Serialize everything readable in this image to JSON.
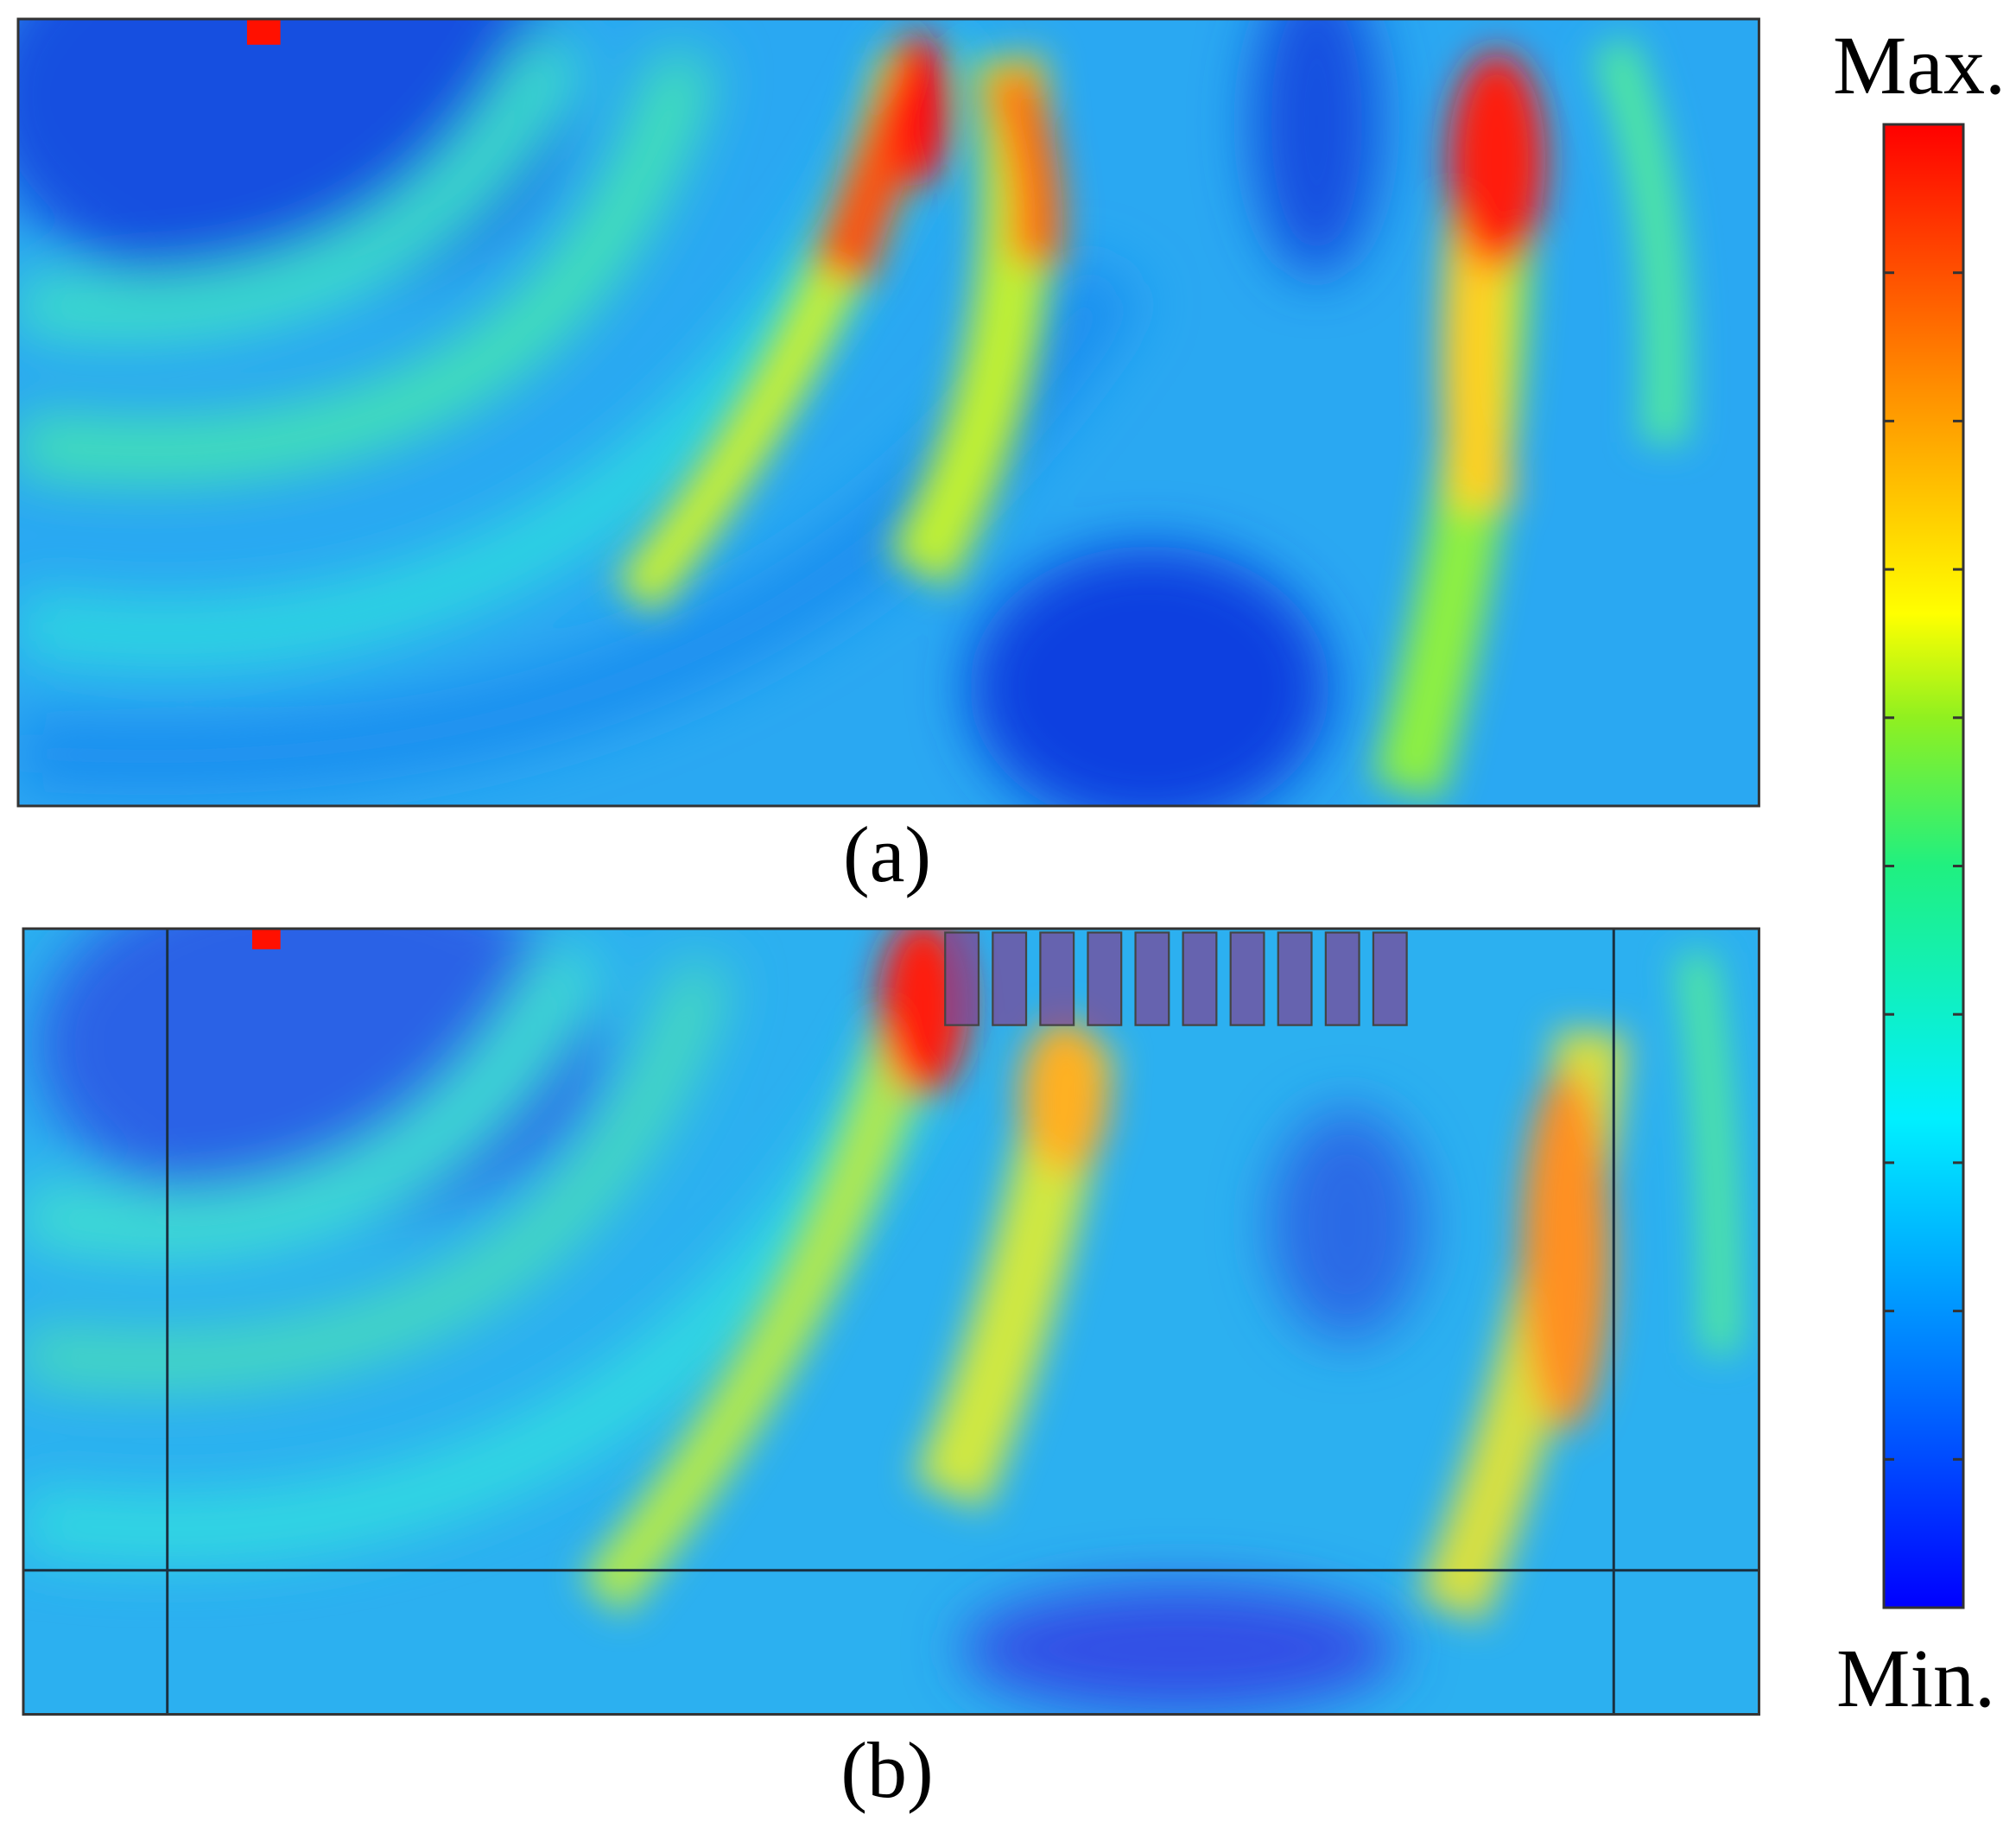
{
  "panels": [
    {
      "label": "(a)"
    },
    {
      "label": "(b)"
    }
  ],
  "colorbar": {
    "max_label": "Max.",
    "min_label": "Min."
  }
}
